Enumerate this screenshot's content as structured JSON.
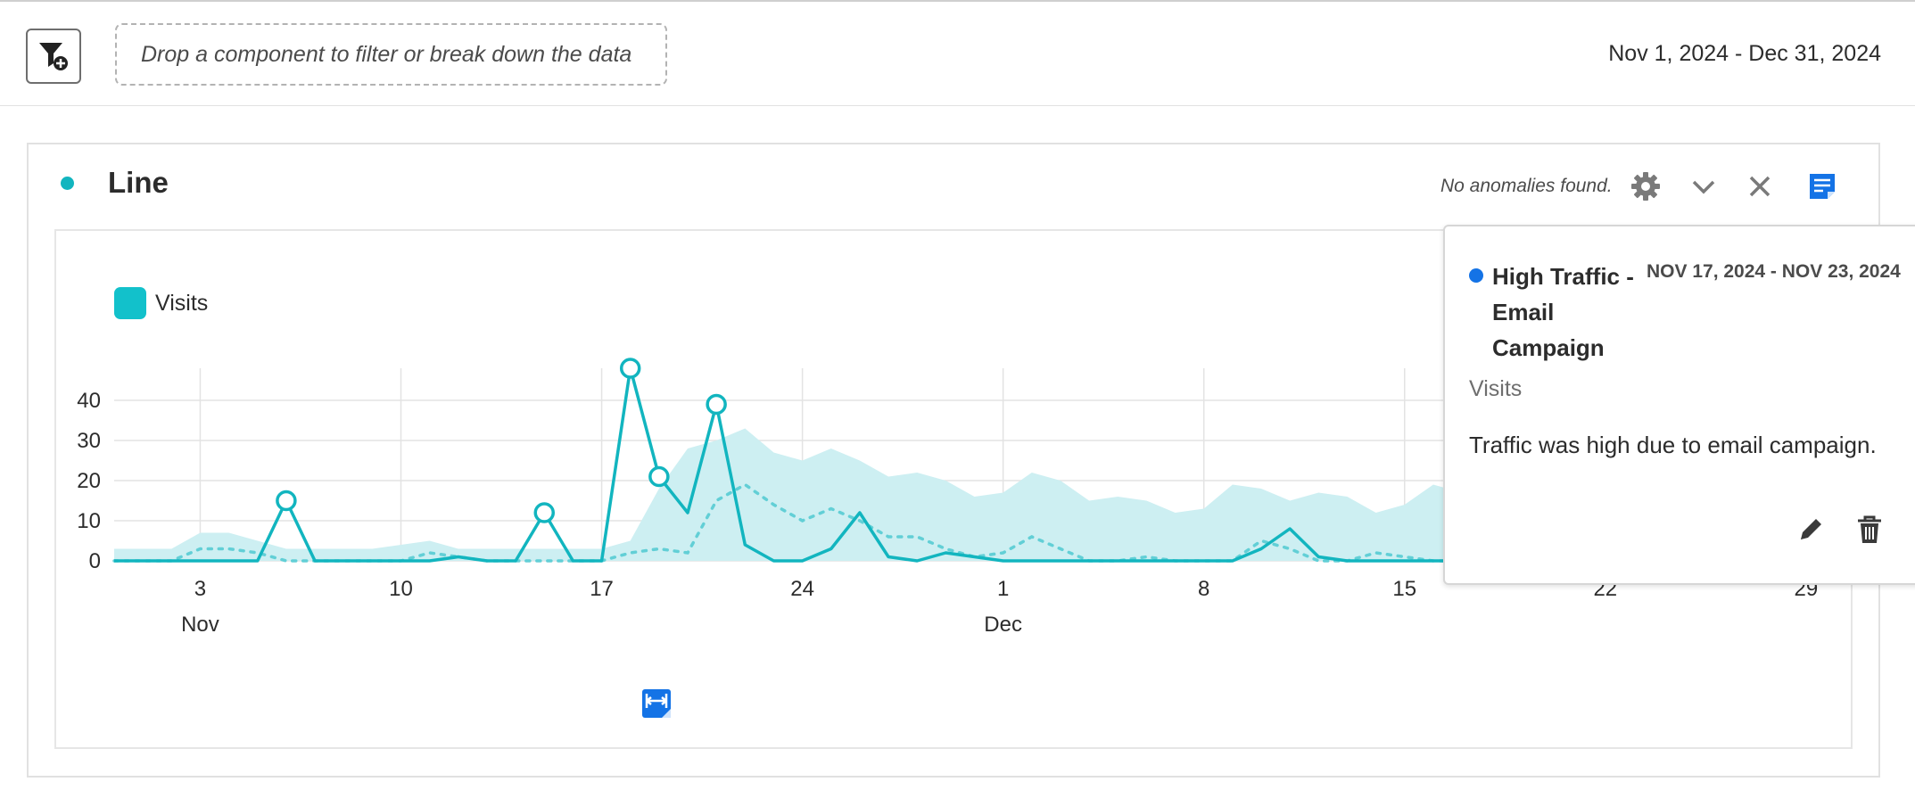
{
  "toolbar": {
    "dropzone_placeholder": "Drop a component to filter or break down the data",
    "date_range": "Nov 1, 2024 - Dec 31, 2024"
  },
  "panel": {
    "title": "Line",
    "anomaly_status": "No anomalies found."
  },
  "annotation": {
    "title": "High Traffic - Email Campaign",
    "title_lines": [
      "High Traffic -",
      "Email",
      "Campaign"
    ],
    "date_range": "NOV 17, 2024 - NOV 23, 2024",
    "metric": "Visits",
    "description": "Traffic was high due to email campaign.",
    "color": "#1473e6"
  },
  "colors": {
    "series": "#12b5bf",
    "band": "#cdeff2",
    "accent": "#1473e6"
  },
  "chart_data": {
    "type": "line",
    "title": "",
    "xlabel": "",
    "ylabel": "",
    "ylim": [
      0,
      50
    ],
    "yticks": [
      0,
      10,
      20,
      30,
      40
    ],
    "grid": true,
    "legend": "top-left",
    "x_tick_labels": [
      {
        "day": 3,
        "label": "3",
        "month": "Nov"
      },
      {
        "day": 10,
        "label": "10"
      },
      {
        "day": 17,
        "label": "17"
      },
      {
        "day": 24,
        "label": "24"
      },
      {
        "day": 31,
        "label": "1",
        "month": "Dec"
      },
      {
        "day": 38,
        "label": "8"
      },
      {
        "day": 45,
        "label": "15"
      },
      {
        "day": 52,
        "label": "22"
      },
      {
        "day": 59,
        "label": "29"
      }
    ],
    "series": [
      {
        "name": "Visits",
        "values": [
          0,
          0,
          0,
          0,
          0,
          0,
          15,
          0,
          0,
          0,
          0,
          0,
          1,
          0,
          0,
          12,
          0,
          0,
          48,
          21,
          12,
          39,
          4,
          0,
          0,
          3,
          12,
          1,
          0,
          2,
          1,
          0,
          0,
          0,
          0,
          0,
          0,
          0,
          0,
          0,
          3,
          8,
          1,
          0,
          0,
          0,
          0,
          0,
          0,
          0,
          0,
          0,
          0,
          0,
          0,
          0,
          0,
          0,
          0,
          0,
          0
        ],
        "anomaly_points": [
          6,
          15,
          18,
          19,
          21
        ],
        "anomaly_values": [
          15,
          12,
          48,
          21,
          39
        ]
      }
    ],
    "expected": [
      0,
      0,
      0,
      3,
      3,
      2,
      0,
      0,
      0,
      0,
      0,
      2,
      1,
      0,
      0,
      0,
      0,
      0,
      2,
      3,
      2,
      15,
      19,
      14,
      10,
      13,
      10,
      6,
      6,
      3,
      1,
      2,
      6,
      3,
      0,
      0,
      1,
      0,
      0,
      0,
      5,
      3,
      0,
      0,
      2,
      1,
      0,
      0,
      5,
      3,
      1,
      0,
      0,
      0,
      0,
      0,
      0,
      0,
      0,
      0,
      0
    ],
    "band_upper": [
      3,
      3,
      3,
      7,
      7,
      5,
      3,
      3,
      3,
      3,
      4,
      5,
      3,
      3,
      3,
      3,
      3,
      3,
      5,
      18,
      28,
      30,
      33,
      27,
      25,
      28,
      25,
      21,
      22,
      20,
      16,
      17,
      22,
      20,
      15,
      16,
      15,
      12,
      13,
      19,
      18,
      15,
      17,
      16,
      12,
      14,
      19,
      17,
      12,
      14,
      13,
      11,
      10,
      9,
      8,
      8,
      7,
      7,
      6,
      6,
      5
    ],
    "annotation_range": {
      "from_day": 17,
      "to_day": 23
    }
  }
}
